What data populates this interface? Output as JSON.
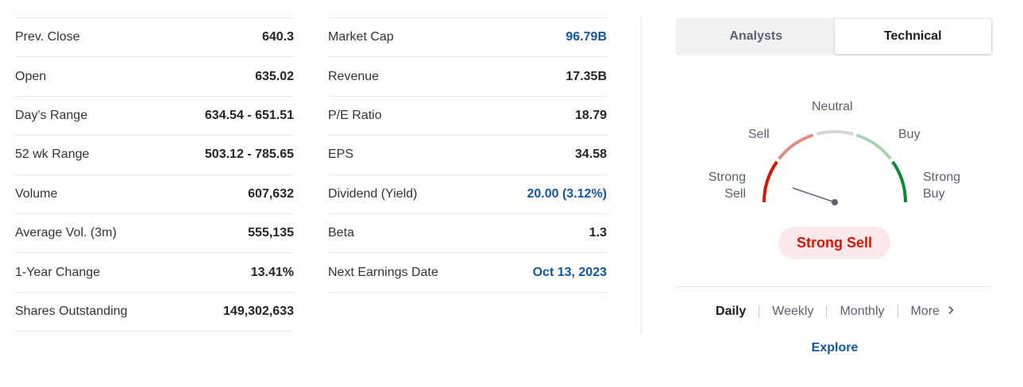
{
  "stats_left": [
    {
      "label": "Prev. Close",
      "value": "640.3"
    },
    {
      "label": "Open",
      "value": "635.02"
    },
    {
      "label": "Day's Range",
      "value": "634.54 - 651.51"
    },
    {
      "label": "52 wk Range",
      "value": "503.12 - 785.65"
    },
    {
      "label": "Volume",
      "value": "607,632"
    },
    {
      "label": "Average Vol. (3m)",
      "value": "555,135"
    },
    {
      "label": "1-Year Change",
      "value": "13.41%"
    },
    {
      "label": "Shares Outstanding",
      "value": "149,302,633"
    }
  ],
  "stats_right": [
    {
      "label": "Market Cap",
      "value": "96.79B"
    },
    {
      "label": "Revenue",
      "value": "17.35B"
    },
    {
      "label": "P/E Ratio",
      "value": "18.79"
    },
    {
      "label": "EPS",
      "value": "34.58"
    },
    {
      "label": "Dividend (Yield)",
      "value": "20.00 (3.12%)"
    },
    {
      "label": "Beta",
      "value": "1.3"
    },
    {
      "label": "Next Earnings Date",
      "value": "Oct 13, 2023"
    }
  ],
  "tabs": {
    "analysts": "Analysts",
    "technical": "Technical"
  },
  "gauge": {
    "strong_sell_1": "Strong",
    "strong_sell_2": "Sell",
    "sell": "Sell",
    "neutral": "Neutral",
    "buy": "Buy",
    "strong_buy_1": "Strong",
    "strong_buy_2": "Buy",
    "verdict": "Strong Sell",
    "colors": {
      "strong_sell": "#d91400",
      "sell": "#df8c84",
      "neutral": "#d4d6d8",
      "buy": "#a9d4b1",
      "strong_buy": "#0a8a35"
    }
  },
  "timeframes": {
    "daily": "Daily",
    "weekly": "Weekly",
    "monthly": "Monthly",
    "more": "More"
  },
  "explore": "Explore"
}
